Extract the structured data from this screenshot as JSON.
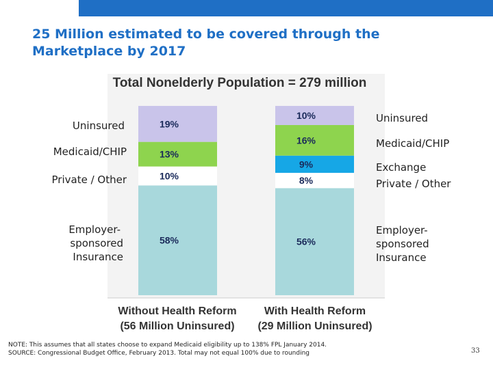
{
  "slide": {
    "title_line1": "25 Million estimated to be covered through the",
    "title_line2": "Marketplace by 2017",
    "note_line1": "NOTE: This assumes that all states choose to expand Medicaid eligibility up to 138% FPL January 2014.",
    "note_line2": "SOURCE: Congressional Budget Office, February 2013. Total may not equal 100% due to rounding",
    "page_number": "33",
    "accent_color": "#1f6fc5"
  },
  "left_labels": {
    "uninsured": "Uninsured",
    "medicaid": "Medicaid/CHIP",
    "private": "Private / Other",
    "employer_line1": "Employer-",
    "employer_line2": "sponsored",
    "employer_line3": "Insurance"
  },
  "right_labels": {
    "uninsured": "Uninsured",
    "medicaid": "Medicaid/CHIP",
    "exchange": "Exchange",
    "private": "Private / Other",
    "employer_line1": "Employer-",
    "employer_line2": "sponsored",
    "employer_line3": "Insurance"
  },
  "chart_data": {
    "type": "bar",
    "stacked": true,
    "title": "Total Nonelderly Population = 279 million",
    "categories": [
      {
        "line1": "Without Health Reform",
        "line2": "(56 Million Uninsured)"
      },
      {
        "line1": "With Health Reform",
        "line2": "(29 Million Uninsured)"
      }
    ],
    "series": [
      {
        "key": "employer",
        "values": [
          58,
          56
        ],
        "labels": [
          "58%",
          "56%"
        ],
        "color": "#a8d8dc"
      },
      {
        "key": "private",
        "values": [
          10,
          8
        ],
        "labels": [
          "10%",
          "8%"
        ],
        "color": "#ffffff"
      },
      {
        "key": "exchange",
        "values": [
          0,
          9
        ],
        "labels": [
          "",
          "9%"
        ],
        "color": "#16a7e6"
      },
      {
        "key": "medicaid",
        "values": [
          13,
          16
        ],
        "labels": [
          "13%",
          "16%"
        ],
        "color": "#8ed44e"
      },
      {
        "key": "uninsured",
        "values": [
          19,
          10
        ],
        "labels": [
          "19%",
          "10%"
        ],
        "color": "#c9c4ea"
      }
    ],
    "ylim": [
      0,
      100
    ],
    "grid": false,
    "legend": "none"
  }
}
